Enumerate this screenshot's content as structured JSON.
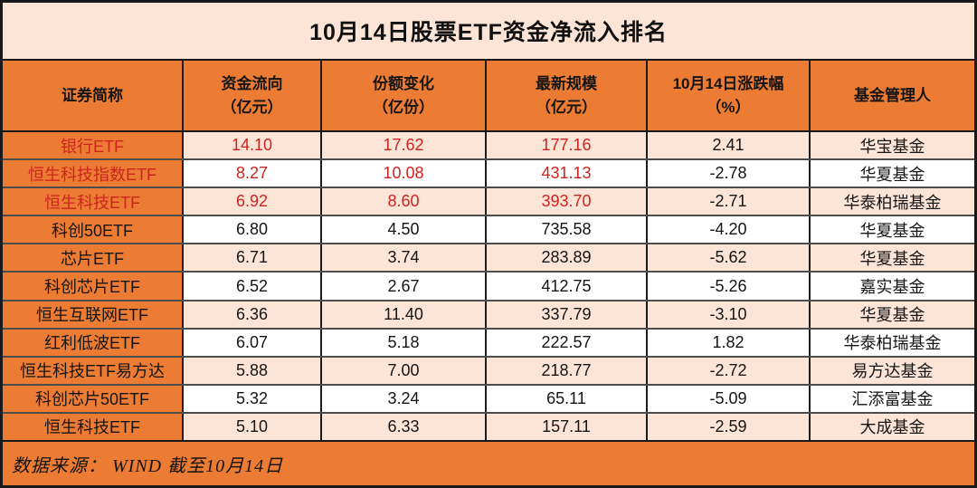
{
  "title": "10月14日股票ETF资金净流入排名",
  "table": {
    "columns": [
      {
        "id": "name",
        "lines": [
          "证券简称"
        ]
      },
      {
        "id": "flow",
        "lines": [
          "资金流向",
          "（亿元）"
        ]
      },
      {
        "id": "share_change",
        "lines": [
          "份额变化",
          "（亿份）"
        ]
      },
      {
        "id": "scale",
        "lines": [
          "最新规模",
          "（亿元）"
        ]
      },
      {
        "id": "change_pct",
        "lines": [
          "10月14日涨跌幅",
          "（%）"
        ]
      },
      {
        "id": "manager",
        "lines": [
          "基金管理人"
        ]
      }
    ],
    "rows": [
      {
        "name": "银行ETF",
        "flow": "14.10",
        "share_change": "17.62",
        "scale": "177.16",
        "change_pct": "2.41",
        "manager": "华宝基金",
        "highlight": true
      },
      {
        "name": "恒生科技指数ETF",
        "flow": "8.27",
        "share_change": "10.08",
        "scale": "431.13",
        "change_pct": "-2.78",
        "manager": "华夏基金",
        "highlight": true
      },
      {
        "name": "恒生科技ETF",
        "flow": "6.92",
        "share_change": "8.60",
        "scale": "393.70",
        "change_pct": "-2.71",
        "manager": "华泰柏瑞基金",
        "highlight": true
      },
      {
        "name": "科创50ETF",
        "flow": "6.80",
        "share_change": "4.50",
        "scale": "735.58",
        "change_pct": "-4.20",
        "manager": "华夏基金",
        "highlight": false
      },
      {
        "name": "芯片ETF",
        "flow": "6.71",
        "share_change": "3.74",
        "scale": "283.89",
        "change_pct": "-5.62",
        "manager": "华夏基金",
        "highlight": false
      },
      {
        "name": "科创芯片ETF",
        "flow": "6.52",
        "share_change": "2.67",
        "scale": "412.75",
        "change_pct": "-5.26",
        "manager": "嘉实基金",
        "highlight": false
      },
      {
        "name": "恒生互联网ETF",
        "flow": "6.36",
        "share_change": "11.40",
        "scale": "337.79",
        "change_pct": "-3.10",
        "manager": "华夏基金",
        "highlight": false
      },
      {
        "name": "红利低波ETF",
        "flow": "6.07",
        "share_change": "5.18",
        "scale": "222.57",
        "change_pct": "1.82",
        "manager": "华泰柏瑞基金",
        "highlight": false
      },
      {
        "name": "恒生科技ETF易方达",
        "flow": "5.88",
        "share_change": "7.00",
        "scale": "218.77",
        "change_pct": "-2.72",
        "manager": "易方达基金",
        "highlight": false
      },
      {
        "name": "科创芯片50ETF",
        "flow": "5.32",
        "share_change": "3.24",
        "scale": "65.11",
        "change_pct": "-5.09",
        "manager": "汇添富基金",
        "highlight": false
      },
      {
        "name": "恒生科技ETF",
        "flow": "5.10",
        "share_change": "6.33",
        "scale": "157.11",
        "change_pct": "-2.59",
        "manager": "大成基金",
        "highlight": false
      }
    ]
  },
  "footer": {
    "text": "数据来源： WIND  截至10月14日"
  },
  "colors": {
    "accent_orange": "#ec7c33",
    "light_peach": "#fce4d6",
    "highlight_red": "#cc241f",
    "text_black": "#151515"
  }
}
